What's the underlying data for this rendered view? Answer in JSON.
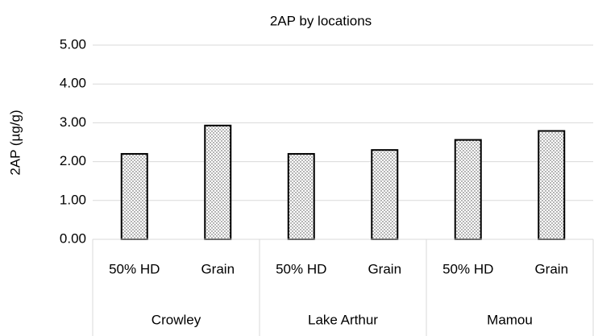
{
  "chart_data": {
    "type": "bar",
    "title": "2AP by locations",
    "y_label": "2AP (µg/g)",
    "groups": [
      {
        "name": "Crowley",
        "categories": [
          "50% HD",
          "Grain"
        ],
        "values": [
          2.2,
          2.93
        ]
      },
      {
        "name": "Lake Arthur",
        "categories": [
          "50% HD",
          "Grain"
        ],
        "values": [
          2.2,
          2.3
        ]
      },
      {
        "name": "Mamou",
        "categories": [
          "50% HD",
          "Grain"
        ],
        "values": [
          2.56,
          2.79
        ]
      }
    ],
    "color": "#000000",
    "ylim": [
      0,
      5
    ],
    "yticks": [
      {
        "value": 0,
        "label": "0.00"
      },
      {
        "value": 1,
        "label": "1.00"
      },
      {
        "value": 2,
        "label": "2.00"
      },
      {
        "value": 3,
        "label": "3.00"
      },
      {
        "value": 4,
        "label": "4.00"
      },
      {
        "value": 5,
        "label": "5.00"
      }
    ],
    "grid": true
  }
}
